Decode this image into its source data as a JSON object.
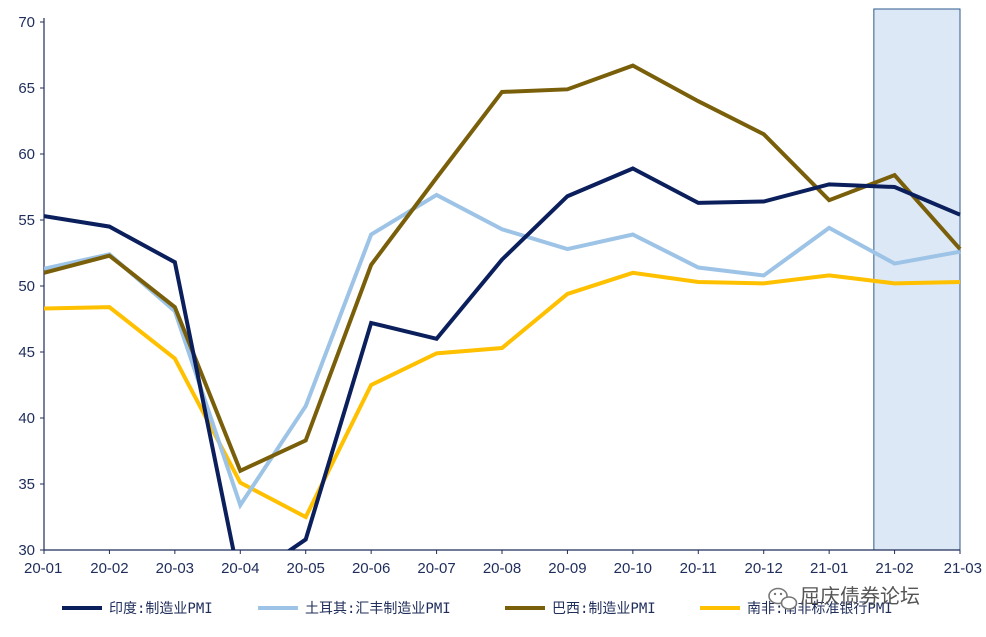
{
  "chart_data": {
    "type": "line",
    "x": [
      "20-01",
      "20-02",
      "20-03",
      "20-04",
      "20-05",
      "20-06",
      "20-07",
      "20-08",
      "20-09",
      "20-10",
      "20-11",
      "20-12",
      "21-01",
      "21-02",
      "21-03"
    ],
    "ylim": [
      30,
      70
    ],
    "yticks": [
      30,
      35,
      40,
      45,
      50,
      55,
      60,
      65,
      70
    ],
    "grid": false,
    "legend_position": "bottom",
    "highlight_range": [
      "21-02",
      "21-03"
    ],
    "series": [
      {
        "name": "印度:制造业PMI",
        "color": "#0a1f5c",
        "values": [
          55.3,
          54.5,
          51.8,
          27.4,
          30.8,
          47.2,
          46.0,
          52.0,
          56.8,
          58.9,
          56.3,
          56.4,
          57.7,
          57.5,
          55.4
        ]
      },
      {
        "name": "土耳其:汇丰制造业PMI",
        "color": "#9dc3e6",
        "values": [
          51.3,
          52.4,
          48.1,
          33.4,
          40.9,
          53.9,
          56.9,
          54.3,
          52.8,
          53.9,
          51.4,
          50.8,
          54.4,
          51.7,
          52.6
        ]
      },
      {
        "name": "巴西:制造业PMI",
        "color": "#7a5f0a",
        "values": [
          51.0,
          52.3,
          48.4,
          36.0,
          38.3,
          51.6,
          58.2,
          64.7,
          64.9,
          66.7,
          64.0,
          61.5,
          56.5,
          58.4,
          52.8
        ]
      },
      {
        "name": "南非:南非标准银行PMI",
        "color": "#ffc000",
        "values": [
          48.3,
          48.4,
          44.5,
          35.1,
          32.5,
          42.5,
          44.9,
          45.3,
          49.4,
          51.0,
          50.3,
          50.2,
          50.8,
          50.2,
          50.3
        ]
      }
    ]
  },
  "watermark": {
    "text": "屈庆债券论坛",
    "icon": "wechat-icon"
  }
}
